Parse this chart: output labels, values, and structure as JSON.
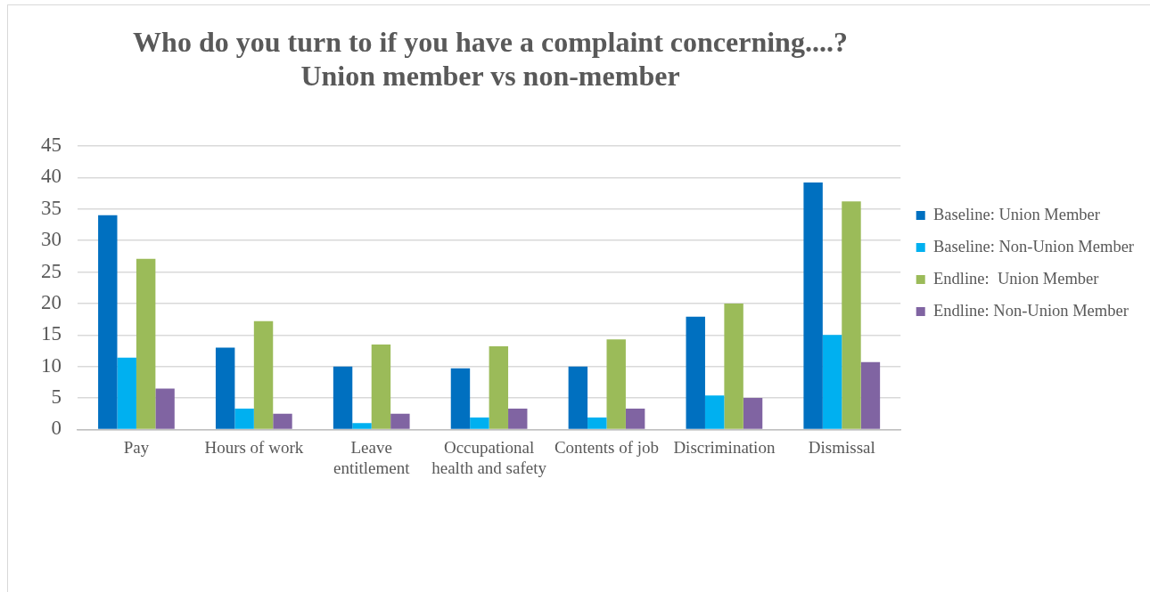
{
  "chart_data": {
    "type": "bar",
    "title": "Who do you turn to if you have a complaint concerning....?\nUnion member vs non-member",
    "categories": [
      "Pay",
      "Hours of work",
      "Leave entitlement",
      "Occupational health and safety",
      "Contents of job",
      "Discrimination",
      "Dismissal"
    ],
    "series": [
      {
        "name": "Baseline: Union Member",
        "color": "#0070c0",
        "values": [
          34,
          13,
          10,
          9.7,
          10,
          17.9,
          39.2
        ]
      },
      {
        "name": "Baseline: Non-Union Member",
        "color": "#00b0f0",
        "values": [
          11.4,
          3.3,
          1,
          1.9,
          1.9,
          5.4,
          15
        ]
      },
      {
        "name": "Endline:  Union Member",
        "color": "#9bbb59",
        "values": [
          27.1,
          17.2,
          13.5,
          13.2,
          14.3,
          20,
          36.2
        ]
      },
      {
        "name": "Endline: Non-Union Member",
        "color": "#8064a2",
        "values": [
          6.5,
          2.5,
          2.5,
          3.3,
          3.3,
          5,
          10.7
        ]
      }
    ],
    "ylim": [
      0,
      45
    ],
    "yticks": [
      0,
      5,
      10,
      15,
      20,
      25,
      30,
      35,
      40,
      45
    ],
    "grid": "y",
    "legend": "right"
  }
}
